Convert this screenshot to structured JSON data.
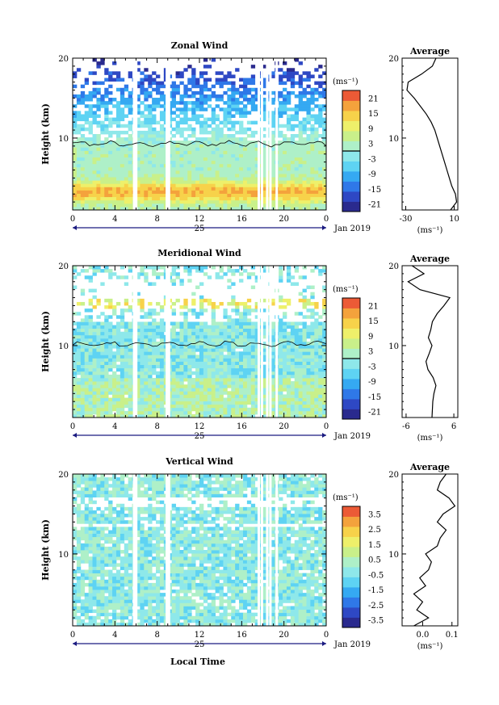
{
  "figure": {
    "bottom_label": "Local Time",
    "date_label": "Jan 2019",
    "day_label": "25"
  },
  "chart_data": [
    {
      "type": "heatmap",
      "title": "Zonal Wind",
      "ylabel": "Height (km)",
      "xlabel": "Local Time",
      "x_ticks": [
        "0",
        "4",
        "8",
        "12",
        "16",
        "20",
        "0"
      ],
      "xlim": [
        0,
        24
      ],
      "y_ticks": [
        "10",
        "20"
      ],
      "ylim": [
        1,
        20
      ],
      "colorbar": {
        "unit": "(ms⁻¹)",
        "ticks": [
          "21",
          "15",
          "9",
          "3",
          "-3",
          "-9",
          "-15",
          "-21"
        ],
        "range": [
          -24,
          24
        ]
      },
      "profile_height_km": [
        1,
        2,
        3,
        4,
        5,
        6,
        7,
        8,
        9,
        10,
        11,
        12,
        13,
        14,
        15,
        16,
        17,
        18,
        19,
        20
      ],
      "profile": {
        "title": "Average",
        "xlabel": "(ms⁻¹)",
        "x_ticks": [
          "-30",
          "10"
        ],
        "xlim": [
          -33,
          13
        ],
        "values": [
          7,
          12,
          11,
          8,
          6,
          4,
          2,
          0,
          -2,
          -4,
          -6,
          -9,
          -13,
          -18,
          -23,
          -29,
          -28,
          -17,
          -8,
          -5
        ]
      }
    },
    {
      "type": "heatmap",
      "title": "Meridional Wind",
      "ylabel": "Height (km)",
      "xlabel": "Local Time",
      "x_ticks": [
        "0",
        "4",
        "8",
        "12",
        "16",
        "20",
        "0"
      ],
      "xlim": [
        0,
        24
      ],
      "y_ticks": [
        "10",
        "20"
      ],
      "ylim": [
        1,
        20
      ],
      "colorbar": {
        "unit": "(ms⁻¹)",
        "ticks": [
          "21",
          "15",
          "9",
          "3",
          "-3",
          "-9",
          "-15",
          "-21"
        ],
        "range": [
          -24,
          24
        ]
      },
      "profile_height_km": [
        1,
        2,
        3,
        4,
        5,
        6,
        7,
        8,
        9,
        10,
        11,
        12,
        13,
        14,
        15,
        16,
        17,
        18,
        19,
        20
      ],
      "profile": {
        "title": "Average",
        "xlabel": "(ms⁻¹)",
        "x_ticks": [
          "-6",
          "6"
        ],
        "xlim": [
          -7,
          7
        ],
        "values": [
          0.5,
          0.6,
          0.7,
          1.0,
          1.5,
          0.8,
          -0.5,
          -1.0,
          -0.2,
          0.5,
          -0.4,
          0.2,
          0.6,
          1.8,
          3.5,
          5.0,
          -2.5,
          -5.5,
          -1.5,
          -4.5
        ]
      }
    },
    {
      "type": "heatmap",
      "title": "Vertical Wind",
      "ylabel": "Height (km)",
      "xlabel": "Local Time",
      "x_ticks": [
        "0",
        "4",
        "8",
        "12",
        "16",
        "20",
        "0"
      ],
      "xlim": [
        0,
        24
      ],
      "y_ticks": [
        "10",
        "20"
      ],
      "ylim": [
        1,
        20
      ],
      "colorbar": {
        "unit": "(ms⁻¹)",
        "ticks": [
          "3.5",
          "2.5",
          "1.5",
          "0.5",
          "-0.5",
          "-1.5",
          "-2.5",
          "-3.5"
        ],
        "range": [
          -4,
          4
        ]
      },
      "profile_height_km": [
        1,
        2,
        3,
        4,
        5,
        6,
        7,
        8,
        9,
        10,
        11,
        12,
        13,
        14,
        15,
        16,
        17,
        18,
        19,
        20
      ],
      "profile": {
        "title": "Average",
        "xlabel": "(ms⁻¹)",
        "x_ticks": [
          "0.0",
          "0.1"
        ],
        "xlim": [
          -0.07,
          0.12
        ],
        "values": [
          -0.03,
          0.02,
          -0.02,
          0.0,
          -0.03,
          0.01,
          -0.01,
          0.02,
          0.03,
          0.01,
          0.05,
          0.06,
          0.08,
          0.05,
          0.07,
          0.11,
          0.09,
          0.05,
          0.06,
          0.08
        ]
      }
    }
  ]
}
